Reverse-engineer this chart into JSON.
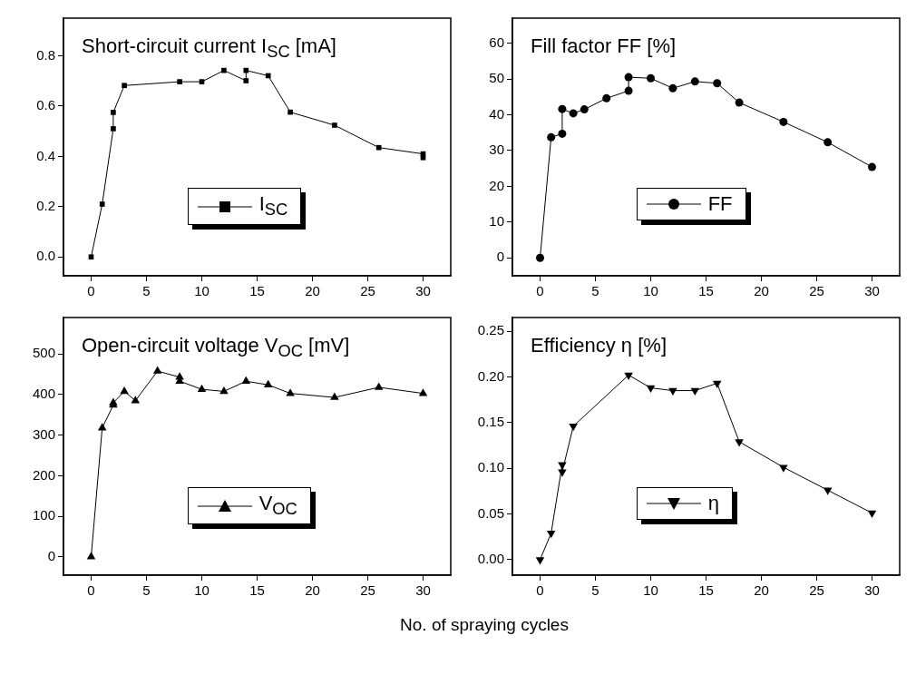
{
  "chart_data": [
    {
      "type": "line",
      "title": "Short-circuit current I$_{SC}$ [mA]",
      "x": [
        0,
        1,
        2,
        2,
        3,
        8,
        10,
        12,
        14,
        14,
        16,
        18,
        22,
        26,
        30,
        30
      ],
      "series": [
        {
          "name": "I$_{SC}$",
          "color": "#000000",
          "values": [
            0,
            0.21,
            0.51,
            0.575,
            0.682,
            0.697,
            0.697,
            0.742,
            0.701,
            0.742,
            0.721,
            0.576,
            0.524,
            0.435,
            0.41,
            0.395
          ]
        }
      ],
      "xlim": [
        -2.5,
        32.5
      ],
      "xticks": [
        0,
        5,
        10,
        15,
        20,
        25,
        30
      ],
      "ylim": [
        -0.075,
        0.95
      ],
      "yticks": [
        {
          "value": 0,
          "label": "0.0"
        },
        {
          "value": 0.2,
          "label": "0.2"
        },
        {
          "value": 0.4,
          "label": "0.4"
        },
        {
          "value": 0.6,
          "label": "0.6"
        },
        {
          "value": 0.8,
          "label": "0.8"
        }
      ],
      "legend": "bottom",
      "marker": "square",
      "line_style": "solid",
      "grid": false
    },
    {
      "type": "line",
      "title": "Fill factor FF [%]",
      "x": [
        0,
        1,
        2,
        2,
        3,
        4,
        6,
        8,
        8,
        10,
        12,
        14,
        16,
        18,
        22,
        26,
        30
      ],
      "series": [
        {
          "name": "FF",
          "color": "#000000",
          "values": [
            0,
            33.7,
            34.7,
            41.6,
            40.4,
            41.5,
            44.6,
            46.7,
            50.5,
            50.2,
            47.4,
            49.3,
            48.8,
            43.4,
            38.0,
            32.3,
            25.4
          ]
        }
      ],
      "xlim": [
        -2.5,
        32.5
      ],
      "xticks": [
        0,
        5,
        10,
        15,
        20,
        25,
        30
      ],
      "ylim": [
        -5,
        67
      ],
      "yticks": [
        0,
        10,
        20,
        30,
        40,
        50,
        60
      ],
      "legend": "bottom",
      "marker": "circle",
      "line_style": "solid",
      "grid": false
    },
    {
      "type": "line",
      "title": "Open-circuit voltage V$_{OC}$ [mV]",
      "xlabel": "No. of spraying cycles",
      "x": [
        0,
        1,
        2,
        2,
        3,
        4,
        6,
        8,
        8,
        10,
        12,
        14,
        16,
        18,
        22,
        26,
        30
      ],
      "series": [
        {
          "name": "V$_{OC}$",
          "color": "#000000",
          "values": [
            0,
            318,
            374,
            380,
            408,
            385,
            458,
            443,
            433,
            413,
            408,
            433,
            424,
            403,
            393,
            418,
            403
          ]
        }
      ],
      "xlim": [
        -2.5,
        32.5
      ],
      "xticks": [
        0,
        5,
        10,
        15,
        20,
        25,
        30
      ],
      "ylim": [
        -45,
        590
      ],
      "yticks": [
        0,
        100,
        200,
        300,
        400,
        500
      ],
      "legend": "bottom",
      "marker": "triangle",
      "line_style": "solid",
      "grid": false
    },
    {
      "type": "line",
      "title": "Efficiency η [%]",
      "x": [
        0,
        1,
        2,
        2,
        3,
        8,
        10,
        12,
        14,
        16,
        18,
        22,
        26,
        30
      ],
      "series": [
        {
          "name": "η",
          "color": "#000000",
          "values": [
            0,
            0.029,
            0.104,
            0.096,
            0.146,
            0.202,
            0.188,
            0.185,
            0.185,
            0.193,
            0.129,
            0.101,
            0.076,
            0.051
          ]
        }
      ],
      "xlim": [
        -2.5,
        32.5
      ],
      "xticks": [
        0,
        5,
        10,
        15,
        20,
        25,
        30
      ],
      "ylim": [
        -0.017,
        0.265
      ],
      "yticks": [
        {
          "value": 0,
          "label": "0.00"
        },
        {
          "value": 0.05,
          "label": "0.05"
        },
        {
          "value": 0.1,
          "label": "0.10"
        },
        {
          "value": 0.15,
          "label": "0.15"
        },
        {
          "value": 0.2,
          "label": "0.20"
        },
        {
          "value": 0.25,
          "label": "0.25"
        }
      ],
      "legend": "bottom",
      "marker": "triangle-down",
      "line_style": "solid",
      "grid": false
    }
  ]
}
